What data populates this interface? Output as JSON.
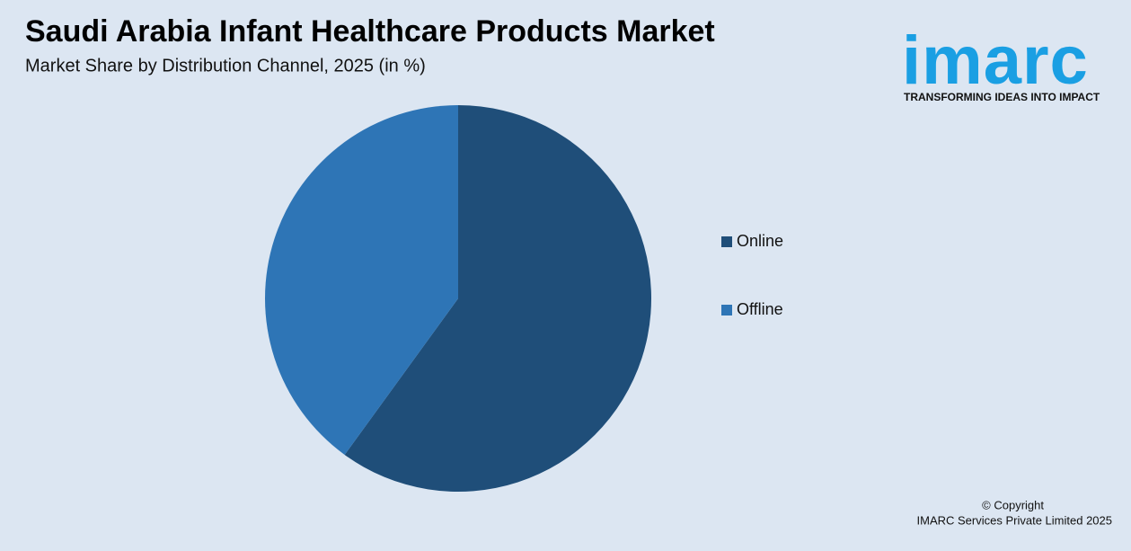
{
  "chart_data": {
    "type": "pie",
    "title": "Saudi Arabia Infant Healthcare Products Market",
    "subtitle": "Market Share by Distribution Channel, 2025 (in %)",
    "categories": [
      "Online",
      "Offline"
    ],
    "values": [
      60,
      40
    ],
    "colors": [
      "#1f4e79",
      "#2e75b6"
    ]
  },
  "branding": {
    "logo": "imarc",
    "tagline": "TRANSFORMING IDEAS INTO IMPACT",
    "copyright": "© Copyright",
    "owner": "IMARC Services Private Limited 2025"
  }
}
